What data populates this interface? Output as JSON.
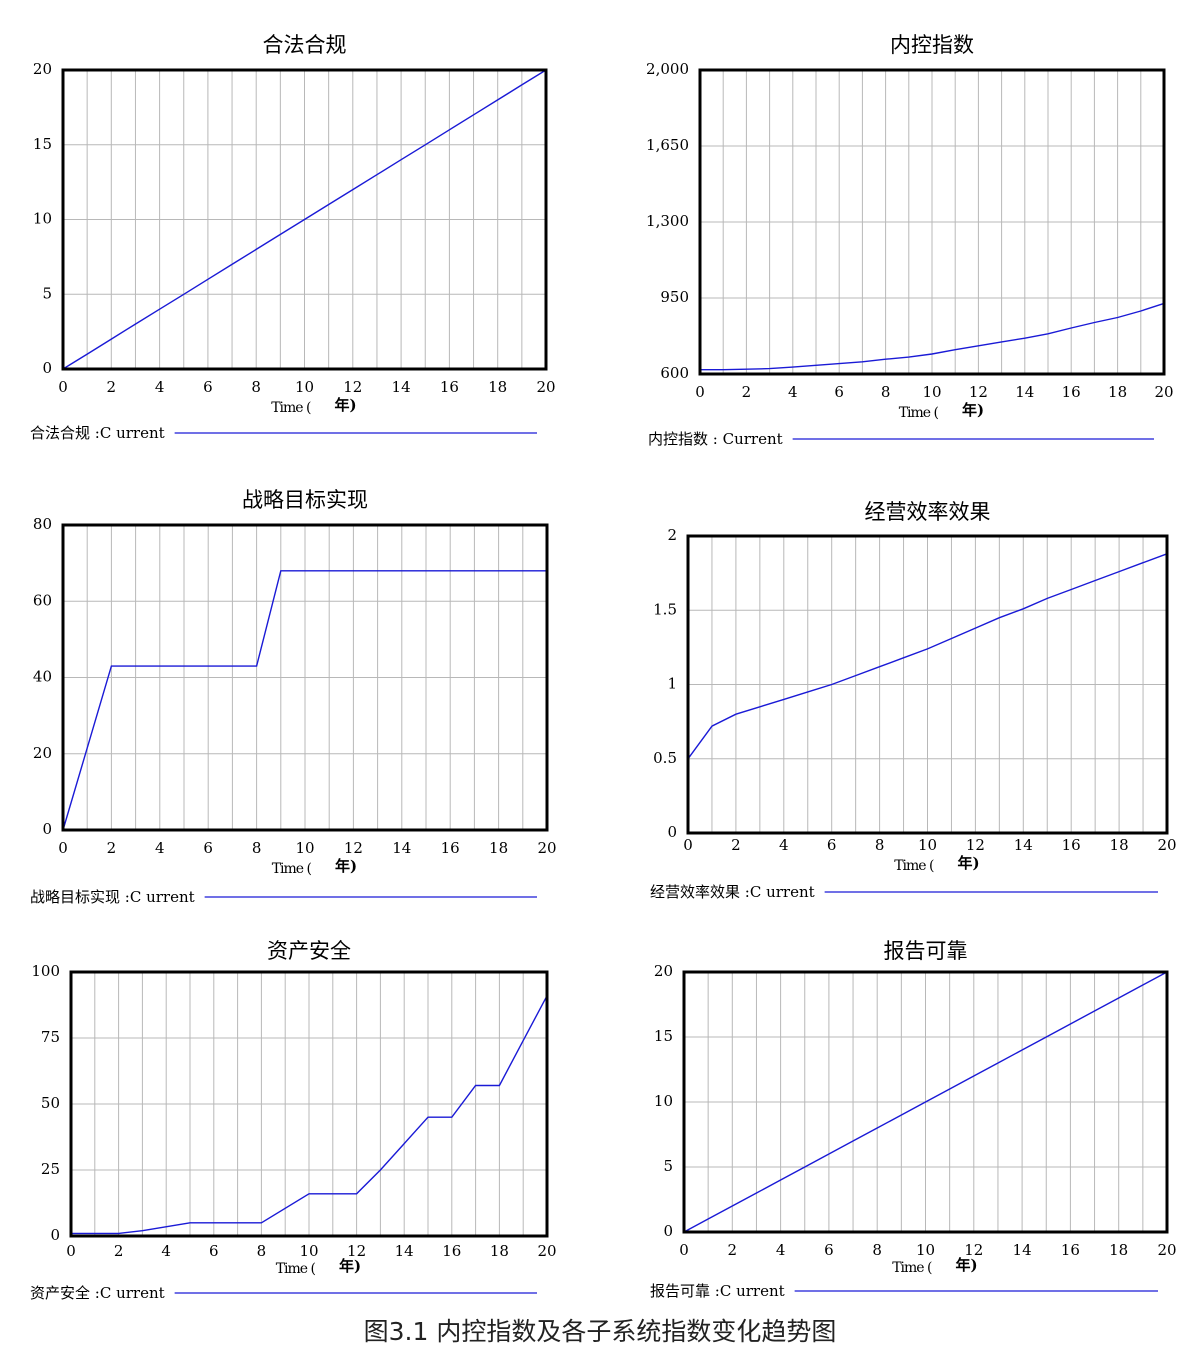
{
  "figure_caption": "图3.1 内控指数及各子系统指数变化趋势图",
  "colors": {
    "series": "#1a1ad6",
    "grid": "#b8b8b8",
    "frame": "#000000"
  },
  "time_label": "Time (",
  "time_unit": "年)",
  "chart_data": [
    {
      "type": "line",
      "title": "合法合规",
      "legend": "合法合规 :C urrent",
      "ylim": [
        0,
        20
      ],
      "yticks": [
        "0",
        "5",
        "10",
        "15",
        "20"
      ],
      "xticks": [
        "0",
        "2",
        "4",
        "6",
        "8",
        "10",
        "12",
        "14",
        "16",
        "18",
        "20"
      ],
      "grid": true,
      "series": [
        {
          "x": [
            0,
            1,
            2,
            3,
            4,
            5,
            6,
            7,
            8,
            9,
            10,
            11,
            12,
            13,
            14,
            15,
            16,
            17,
            18,
            19,
            20
          ],
          "values": [
            0,
            1,
            2,
            3,
            4,
            5,
            6,
            7,
            8,
            9,
            10,
            11,
            12,
            13,
            14,
            15,
            16,
            17,
            18,
            19,
            20
          ]
        }
      ]
    },
    {
      "type": "line",
      "title": "内控指数",
      "legend": "内控指数 : Current",
      "ylim": [
        600,
        2000
      ],
      "yticks": [
        "600",
        "950",
        "1,300",
        "1,650",
        "2,000"
      ],
      "xticks": [
        "0",
        "2",
        "4",
        "6",
        "8",
        "10",
        "12",
        "14",
        "16",
        "18",
        "20"
      ],
      "grid": true,
      "series": [
        {
          "x": [
            0,
            1,
            2,
            3,
            4,
            5,
            6,
            7,
            8,
            9,
            10,
            11,
            12,
            13,
            14,
            15,
            16,
            17,
            18,
            19,
            20
          ],
          "values": [
            620,
            620,
            622,
            625,
            632,
            640,
            648,
            656,
            668,
            678,
            692,
            712,
            730,
            748,
            765,
            785,
            812,
            837,
            860,
            890,
            925
          ]
        }
      ]
    },
    {
      "type": "line",
      "title": "战略目标实现",
      "legend": "战略目标实现 :C urrent",
      "ylim": [
        0,
        80
      ],
      "yticks": [
        "0",
        "20",
        "40",
        "60",
        "80"
      ],
      "xticks": [
        "0",
        "2",
        "4",
        "6",
        "8",
        "10",
        "12",
        "14",
        "16",
        "18",
        "20"
      ],
      "grid": true,
      "series": [
        {
          "x": [
            0,
            2,
            8,
            9,
            20
          ],
          "values": [
            0,
            43,
            43,
            68,
            68
          ]
        }
      ]
    },
    {
      "type": "line",
      "title": "经营效率效果",
      "legend": "经营效率效果 :C urrent",
      "ylim": [
        0,
        2
      ],
      "yticks": [
        "0",
        "0.5",
        "1",
        "1.5",
        "2"
      ],
      "xticks": [
        "0",
        "2",
        "4",
        "6",
        "8",
        "10",
        "12",
        "14",
        "16",
        "18",
        "20"
      ],
      "grid": true,
      "series": [
        {
          "x": [
            0,
            1,
            2,
            3,
            4,
            5,
            6,
            7,
            8,
            9,
            10,
            11,
            12,
            13,
            14,
            15,
            16,
            17,
            18,
            19,
            20
          ],
          "values": [
            0.5,
            0.72,
            0.8,
            0.85,
            0.9,
            0.95,
            1.0,
            1.06,
            1.12,
            1.18,
            1.24,
            1.31,
            1.38,
            1.45,
            1.51,
            1.58,
            1.64,
            1.7,
            1.76,
            1.82,
            1.88
          ]
        }
      ]
    },
    {
      "type": "line",
      "title": "资产安全",
      "legend": "资产安全 :C urrent",
      "ylim": [
        0,
        100
      ],
      "yticks": [
        "0",
        "25",
        "50",
        "75",
        "100"
      ],
      "xticks": [
        "0",
        "2",
        "4",
        "6",
        "8",
        "10",
        "12",
        "14",
        "16",
        "18",
        "20"
      ],
      "grid": true,
      "series": [
        {
          "x": [
            0,
            2,
            3,
            5,
            8,
            10,
            12,
            13,
            14,
            15,
            16,
            17,
            18,
            19,
            20
          ],
          "values": [
            1,
            1,
            2,
            5,
            5,
            16,
            16,
            25,
            35,
            45,
            45,
            57,
            57,
            74,
            91
          ]
        }
      ]
    },
    {
      "type": "line",
      "title": "报告可靠",
      "legend": "报告可靠 :C urrent",
      "ylim": [
        0,
        20
      ],
      "yticks": [
        "0",
        "5",
        "10",
        "15",
        "20"
      ],
      "xticks": [
        "0",
        "2",
        "4",
        "6",
        "8",
        "10",
        "12",
        "14",
        "16",
        "18",
        "20"
      ],
      "grid": true,
      "series": [
        {
          "x": [
            0,
            1,
            2,
            3,
            4,
            5,
            6,
            7,
            8,
            9,
            10,
            11,
            12,
            13,
            14,
            15,
            16,
            17,
            18,
            19,
            20
          ],
          "values": [
            0,
            1,
            2,
            3,
            4,
            5,
            6,
            7,
            8,
            9,
            10,
            11,
            12,
            13,
            14,
            15,
            16,
            17,
            18,
            19,
            20
          ]
        }
      ]
    }
  ]
}
